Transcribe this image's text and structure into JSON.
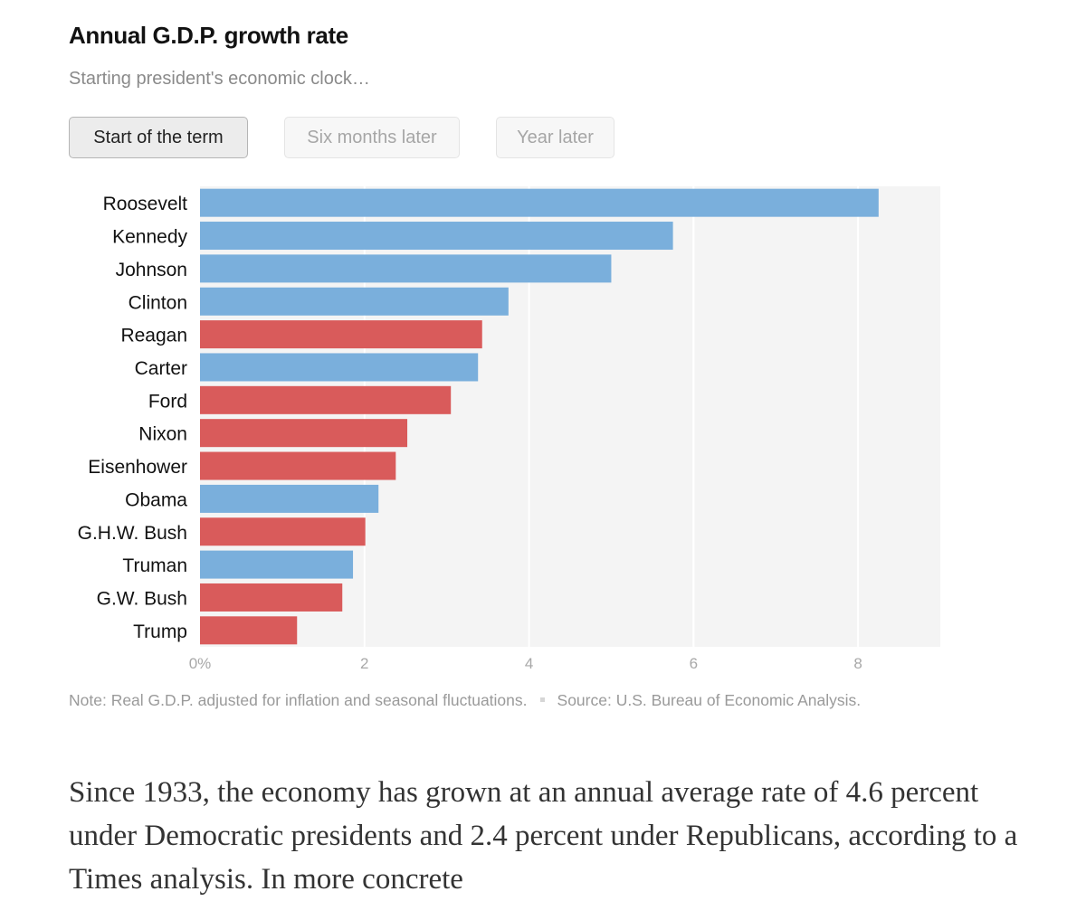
{
  "header": {
    "title": "Annual G.D.P. growth rate",
    "subtitle": "Starting president's economic clock…"
  },
  "toggles": {
    "start": "Start of the term",
    "six_months": "Six months later",
    "year": "Year later",
    "selected": "Start of the term"
  },
  "colors": {
    "democrat": "#7aafdc",
    "republican": "#d95b5b",
    "plot_background": "#f4f4f4",
    "gridline": "#ffffff"
  },
  "chart_data": {
    "type": "bar",
    "orientation": "horizontal",
    "title": "Annual G.D.P. growth rate",
    "categories": [
      "Roosevelt",
      "Kennedy",
      "Johnson",
      "Clinton",
      "Reagan",
      "Carter",
      "Ford",
      "Nixon",
      "Eisenhower",
      "Obama",
      "G.H.W. Bush",
      "Truman",
      "G.W. Bush",
      "Trump"
    ],
    "values": [
      8.25,
      5.75,
      5.0,
      3.75,
      3.43,
      3.38,
      3.05,
      2.52,
      2.38,
      2.17,
      2.01,
      1.86,
      1.73,
      1.18
    ],
    "party": [
      "D",
      "D",
      "D",
      "D",
      "R",
      "D",
      "R",
      "R",
      "R",
      "D",
      "R",
      "D",
      "R",
      "R"
    ],
    "xlim": [
      0,
      9
    ],
    "xticks": [
      0,
      2,
      4,
      6,
      8
    ],
    "xtick_labels": [
      "0%",
      "2",
      "4",
      "6",
      "8"
    ],
    "grid": true
  },
  "footer": {
    "note": "Note: Real G.D.P. adjusted for inflation and seasonal fluctuations.",
    "source": "Source: U.S. Bureau of Economic Analysis."
  },
  "article": {
    "text": "Since 1933, the economy has grown at an annual average rate of 4.6 percent under Democratic presidents and 2.4 percent under Republicans, according to a Times analysis. In more concrete"
  }
}
